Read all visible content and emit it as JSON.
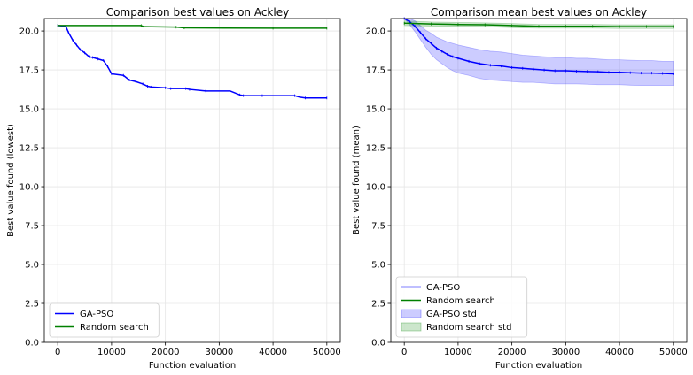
{
  "chart_data": [
    {
      "type": "line",
      "title": "Comparison best values on Ackley",
      "xlabel": "Function evaluation",
      "ylabel": "Best value found (lowest)",
      "xlim": [
        -2500,
        52500
      ],
      "ylim": [
        0,
        20.8
      ],
      "xticks": [
        0,
        10000,
        20000,
        30000,
        40000,
        50000
      ],
      "yticks": [
        0.0,
        2.5,
        5.0,
        7.5,
        10.0,
        12.5,
        15.0,
        17.5,
        20.0
      ],
      "grid": true,
      "legend_position": "lower-left",
      "series": [
        {
          "name": "GA-PSO",
          "color": "#0000ff",
          "x": [
            0,
            1500,
            2000,
            2800,
            3500,
            4200,
            5000,
            5800,
            6500,
            7500,
            8500,
            9300,
            10000,
            12200,
            13300,
            14500,
            15800,
            16700,
            17400,
            20000,
            21000,
            23800,
            24500,
            27500,
            32000,
            33800,
            34500,
            38000,
            44000,
            45000,
            46000,
            50000
          ],
          "y": [
            20.35,
            20.3,
            19.9,
            19.4,
            19.1,
            18.8,
            18.6,
            18.35,
            18.3,
            18.2,
            18.1,
            17.7,
            17.25,
            17.15,
            16.85,
            16.75,
            16.6,
            16.45,
            16.4,
            16.35,
            16.3,
            16.3,
            16.25,
            16.15,
            16.15,
            15.9,
            15.85,
            15.85,
            15.85,
            15.75,
            15.7,
            15.7
          ]
        },
        {
          "name": "Random search",
          "color": "#008000",
          "x": [
            0,
            15500,
            16000,
            22000,
            23500,
            40000,
            50000
          ],
          "y": [
            20.35,
            20.35,
            20.28,
            20.25,
            20.2,
            20.18,
            20.18
          ]
        }
      ]
    },
    {
      "type": "line",
      "title": "Comparison mean best values on Ackley",
      "xlabel": "Function evaluation",
      "ylabel": "Best value found (mean)",
      "xlim": [
        -2500,
        52500
      ],
      "ylim": [
        0,
        20.8
      ],
      "xticks": [
        0,
        10000,
        20000,
        30000,
        40000,
        50000
      ],
      "yticks": [
        0.0,
        2.5,
        5.0,
        7.5,
        10.0,
        12.5,
        15.0,
        17.5,
        20.0
      ],
      "grid": true,
      "legend_position": "lower-left",
      "series": [
        {
          "name": "GA-PSO",
          "color": "#0000ff",
          "x": [
            0,
            1000,
            2000,
            3000,
            4000,
            5000,
            6000,
            7000,
            8000,
            9000,
            10000,
            12000,
            14000,
            16000,
            18000,
            20000,
            22000,
            24000,
            26000,
            28000,
            30000,
            32000,
            34000,
            36000,
            38000,
            40000,
            42000,
            44000,
            46000,
            48000,
            50000
          ],
          "y": [
            20.8,
            20.6,
            20.3,
            19.9,
            19.5,
            19.2,
            18.9,
            18.7,
            18.5,
            18.35,
            18.25,
            18.05,
            17.9,
            17.8,
            17.75,
            17.65,
            17.6,
            17.55,
            17.5,
            17.45,
            17.45,
            17.42,
            17.4,
            17.38,
            17.35,
            17.35,
            17.32,
            17.3,
            17.3,
            17.28,
            17.25
          ],
          "std_low": [
            20.8,
            20.4,
            19.95,
            19.45,
            18.95,
            18.5,
            18.15,
            17.9,
            17.65,
            17.45,
            17.3,
            17.15,
            16.95,
            16.85,
            16.8,
            16.75,
            16.7,
            16.7,
            16.65,
            16.6,
            16.6,
            16.6,
            16.58,
            16.55,
            16.55,
            16.55,
            16.52,
            16.5,
            16.5,
            16.5,
            16.5
          ],
          "std_high": [
            20.8,
            20.8,
            20.65,
            20.35,
            20.05,
            19.85,
            19.6,
            19.45,
            19.3,
            19.2,
            19.1,
            18.95,
            18.8,
            18.7,
            18.65,
            18.55,
            18.45,
            18.4,
            18.35,
            18.3,
            18.3,
            18.25,
            18.25,
            18.2,
            18.15,
            18.15,
            18.12,
            18.1,
            18.1,
            18.05,
            18.05
          ]
        },
        {
          "name": "Random search",
          "color": "#008000",
          "x": [
            0,
            5000,
            10000,
            15000,
            20000,
            25000,
            30000,
            35000,
            40000,
            45000,
            50000
          ],
          "y": [
            20.5,
            20.45,
            20.42,
            20.4,
            20.35,
            20.3,
            20.3,
            20.3,
            20.28,
            20.28,
            20.28
          ],
          "std_low": [
            20.35,
            20.32,
            20.3,
            20.28,
            20.22,
            20.18,
            20.18,
            20.18,
            20.16,
            20.16,
            20.16
          ],
          "std_high": [
            20.65,
            20.58,
            20.55,
            20.52,
            20.48,
            20.42,
            20.42,
            20.42,
            20.4,
            20.4,
            20.4
          ]
        }
      ],
      "legend": [
        "GA-PSO",
        "Random search",
        "GA-PSO std",
        "Random search std"
      ]
    }
  ]
}
